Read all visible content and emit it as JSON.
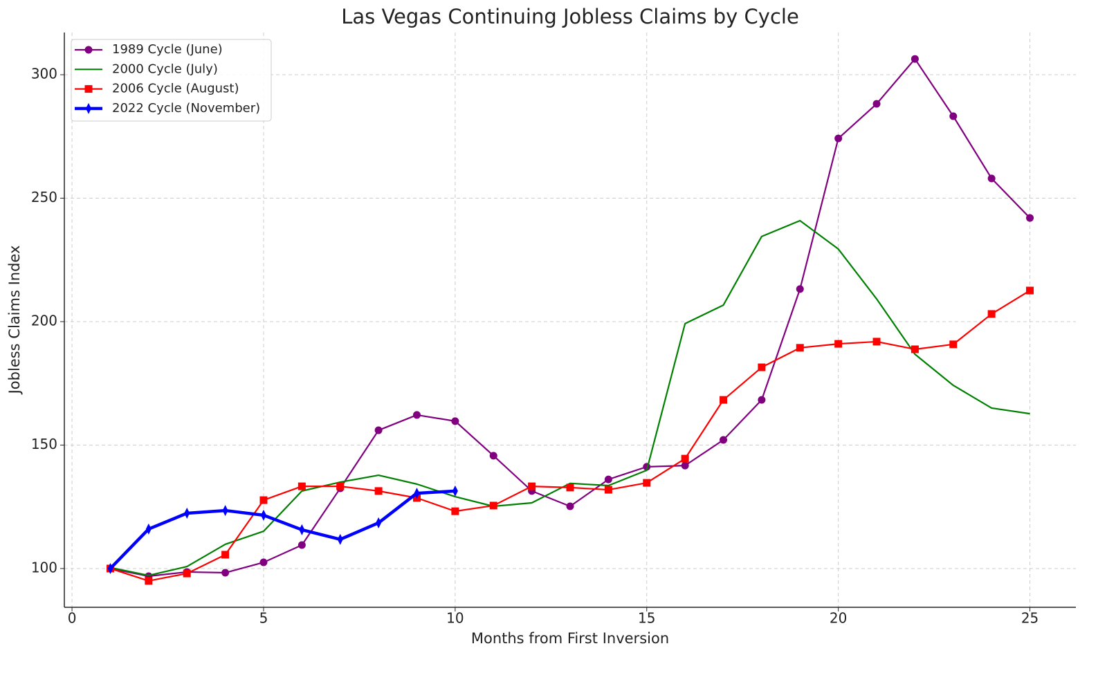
{
  "chart_data": {
    "type": "line",
    "title": "Las Vegas Continuing Jobless Claims by Cycle",
    "x_label": "Months from First Inversion",
    "y_label": "Jobless Claims Index",
    "x": [
      1,
      2,
      3,
      4,
      5,
      6,
      7,
      8,
      9,
      10,
      11,
      12,
      13,
      14,
      15,
      16,
      17,
      18,
      19,
      20,
      21,
      22,
      23,
      24,
      25
    ],
    "series": [
      {
        "name": "1989 Cycle (June)",
        "color": "#800080",
        "marker": "circle",
        "linewidth": 2.2,
        "values": [
          100,
          96.9,
          98.6,
          98.3,
          102.5,
          109.5,
          132.5,
          156,
          162.2,
          159.7,
          145.7,
          131.4,
          125.2,
          136.1,
          141.2,
          141.7,
          152.1,
          168.3,
          213.2,
          274.2,
          288.2,
          306.4,
          283.2,
          258,
          242
        ]
      },
      {
        "name": "2000 Cycle (July)",
        "color": "#008000",
        "marker": "none",
        "linewidth": 2.2,
        "values": [
          100.4,
          97.2,
          100.8,
          109.8,
          115.1,
          131.4,
          135,
          137.8,
          134.2,
          129.1,
          125.2,
          126.6,
          134.5,
          133.6,
          139.8,
          199.2,
          206.7,
          234.5,
          240.9,
          229.4,
          209.2,
          186.8,
          174.2,
          165,
          162.7
        ]
      },
      {
        "name": "2006 Cycle (August)",
        "color": "#ff0000",
        "marker": "square",
        "linewidth": 2.2,
        "values": [
          100,
          95,
          98,
          105.6,
          127.7,
          133.3,
          133.3,
          131.4,
          128.6,
          123.2,
          125.5,
          133.3,
          132.8,
          131.9,
          134.7,
          144.5,
          168.3,
          181.5,
          189.4,
          191,
          191.9,
          188.8,
          190.8,
          203.1,
          212.6
        ]
      },
      {
        "name": "2022 Cycle (November)",
        "color": "#0000ff",
        "marker": "thin-diamond",
        "linewidth": 4.5,
        "values": [
          100,
          116,
          122.4,
          123.5,
          121.6,
          115.7,
          111.8,
          118.5,
          130.5,
          131.4,
          null,
          null,
          null,
          null,
          null,
          null,
          null,
          null,
          null,
          null,
          null,
          null,
          null,
          null,
          null
        ]
      }
    ],
    "xlim": [
      -0.2,
      26.2
    ],
    "xticks": [
      0,
      5,
      10,
      15,
      20,
      25
    ],
    "ylim": [
      84.3,
      317.1
    ],
    "yticks": [
      100,
      150,
      200,
      250,
      300
    ],
    "grid": true,
    "legend": "upper-left"
  }
}
